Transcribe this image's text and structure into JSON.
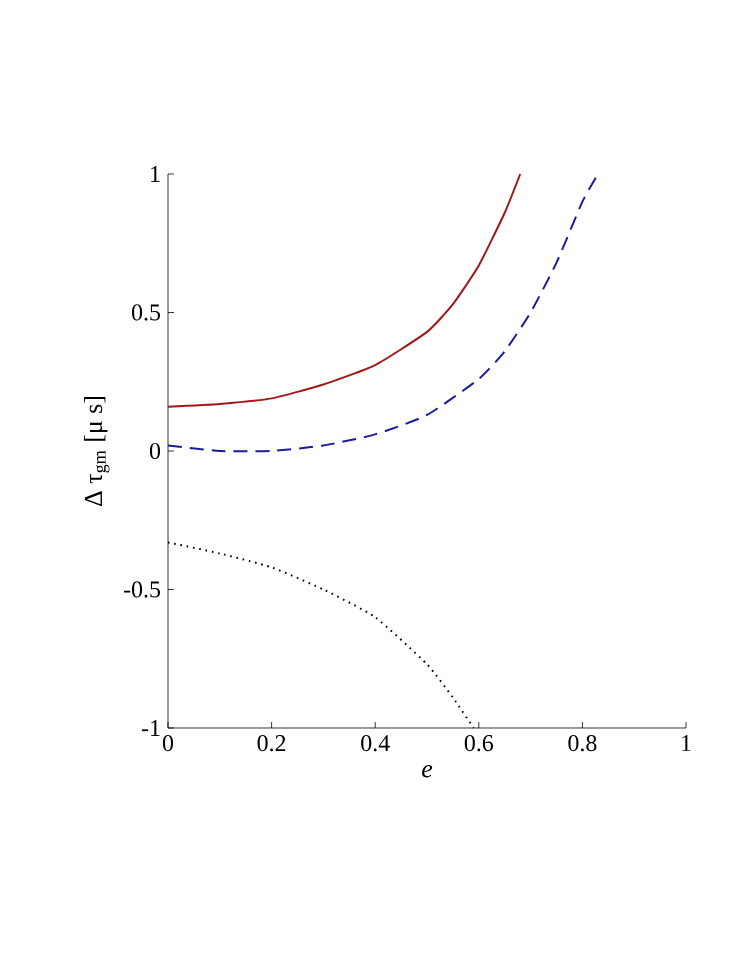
{
  "chart_data": {
    "type": "line",
    "xlabel": "*e*",
    "ylabel": "Δ τ$_{gm}$ [μ s]",
    "xlim": [
      0,
      1
    ],
    "ylim": [
      -1,
      1
    ],
    "xticks": [
      0,
      0.2,
      0.4,
      0.6,
      0.8,
      1
    ],
    "yticks": [
      -1,
      -0.5,
      0,
      0.5,
      1
    ],
    "grid": false,
    "series": [
      {
        "color": "#a01818",
        "line_style": "solid",
        "x": [
          0,
          0.1,
          0.2,
          0.3,
          0.4,
          0.5,
          0.55,
          0.6,
          0.65,
          0.68
        ],
        "values": [
          0.16,
          0.17,
          0.19,
          0.24,
          0.31,
          0.43,
          0.53,
          0.67,
          0.86,
          1
        ]
      },
      {
        "color": "#1a1aa0",
        "line_style": "dashed",
        "x": [
          0,
          0.1,
          0.2,
          0.3,
          0.4,
          0.5,
          0.6,
          0.65,
          0.7,
          0.75,
          0.8,
          0.83
        ],
        "values": [
          0.02,
          0.0,
          0.0,
          0.02,
          0.06,
          0.13,
          0.26,
          0.36,
          0.5,
          0.68,
          0.9,
          1
        ]
      },
      {
        "color": "#000000",
        "line_style": "dotted",
        "x": [
          0,
          0.1,
          0.2,
          0.3,
          0.4,
          0.5,
          0.55,
          0.59
        ],
        "values": [
          -0.33,
          -0.37,
          -0.42,
          -0.5,
          -0.6,
          -0.77,
          -0.89,
          -1
        ]
      }
    ]
  }
}
